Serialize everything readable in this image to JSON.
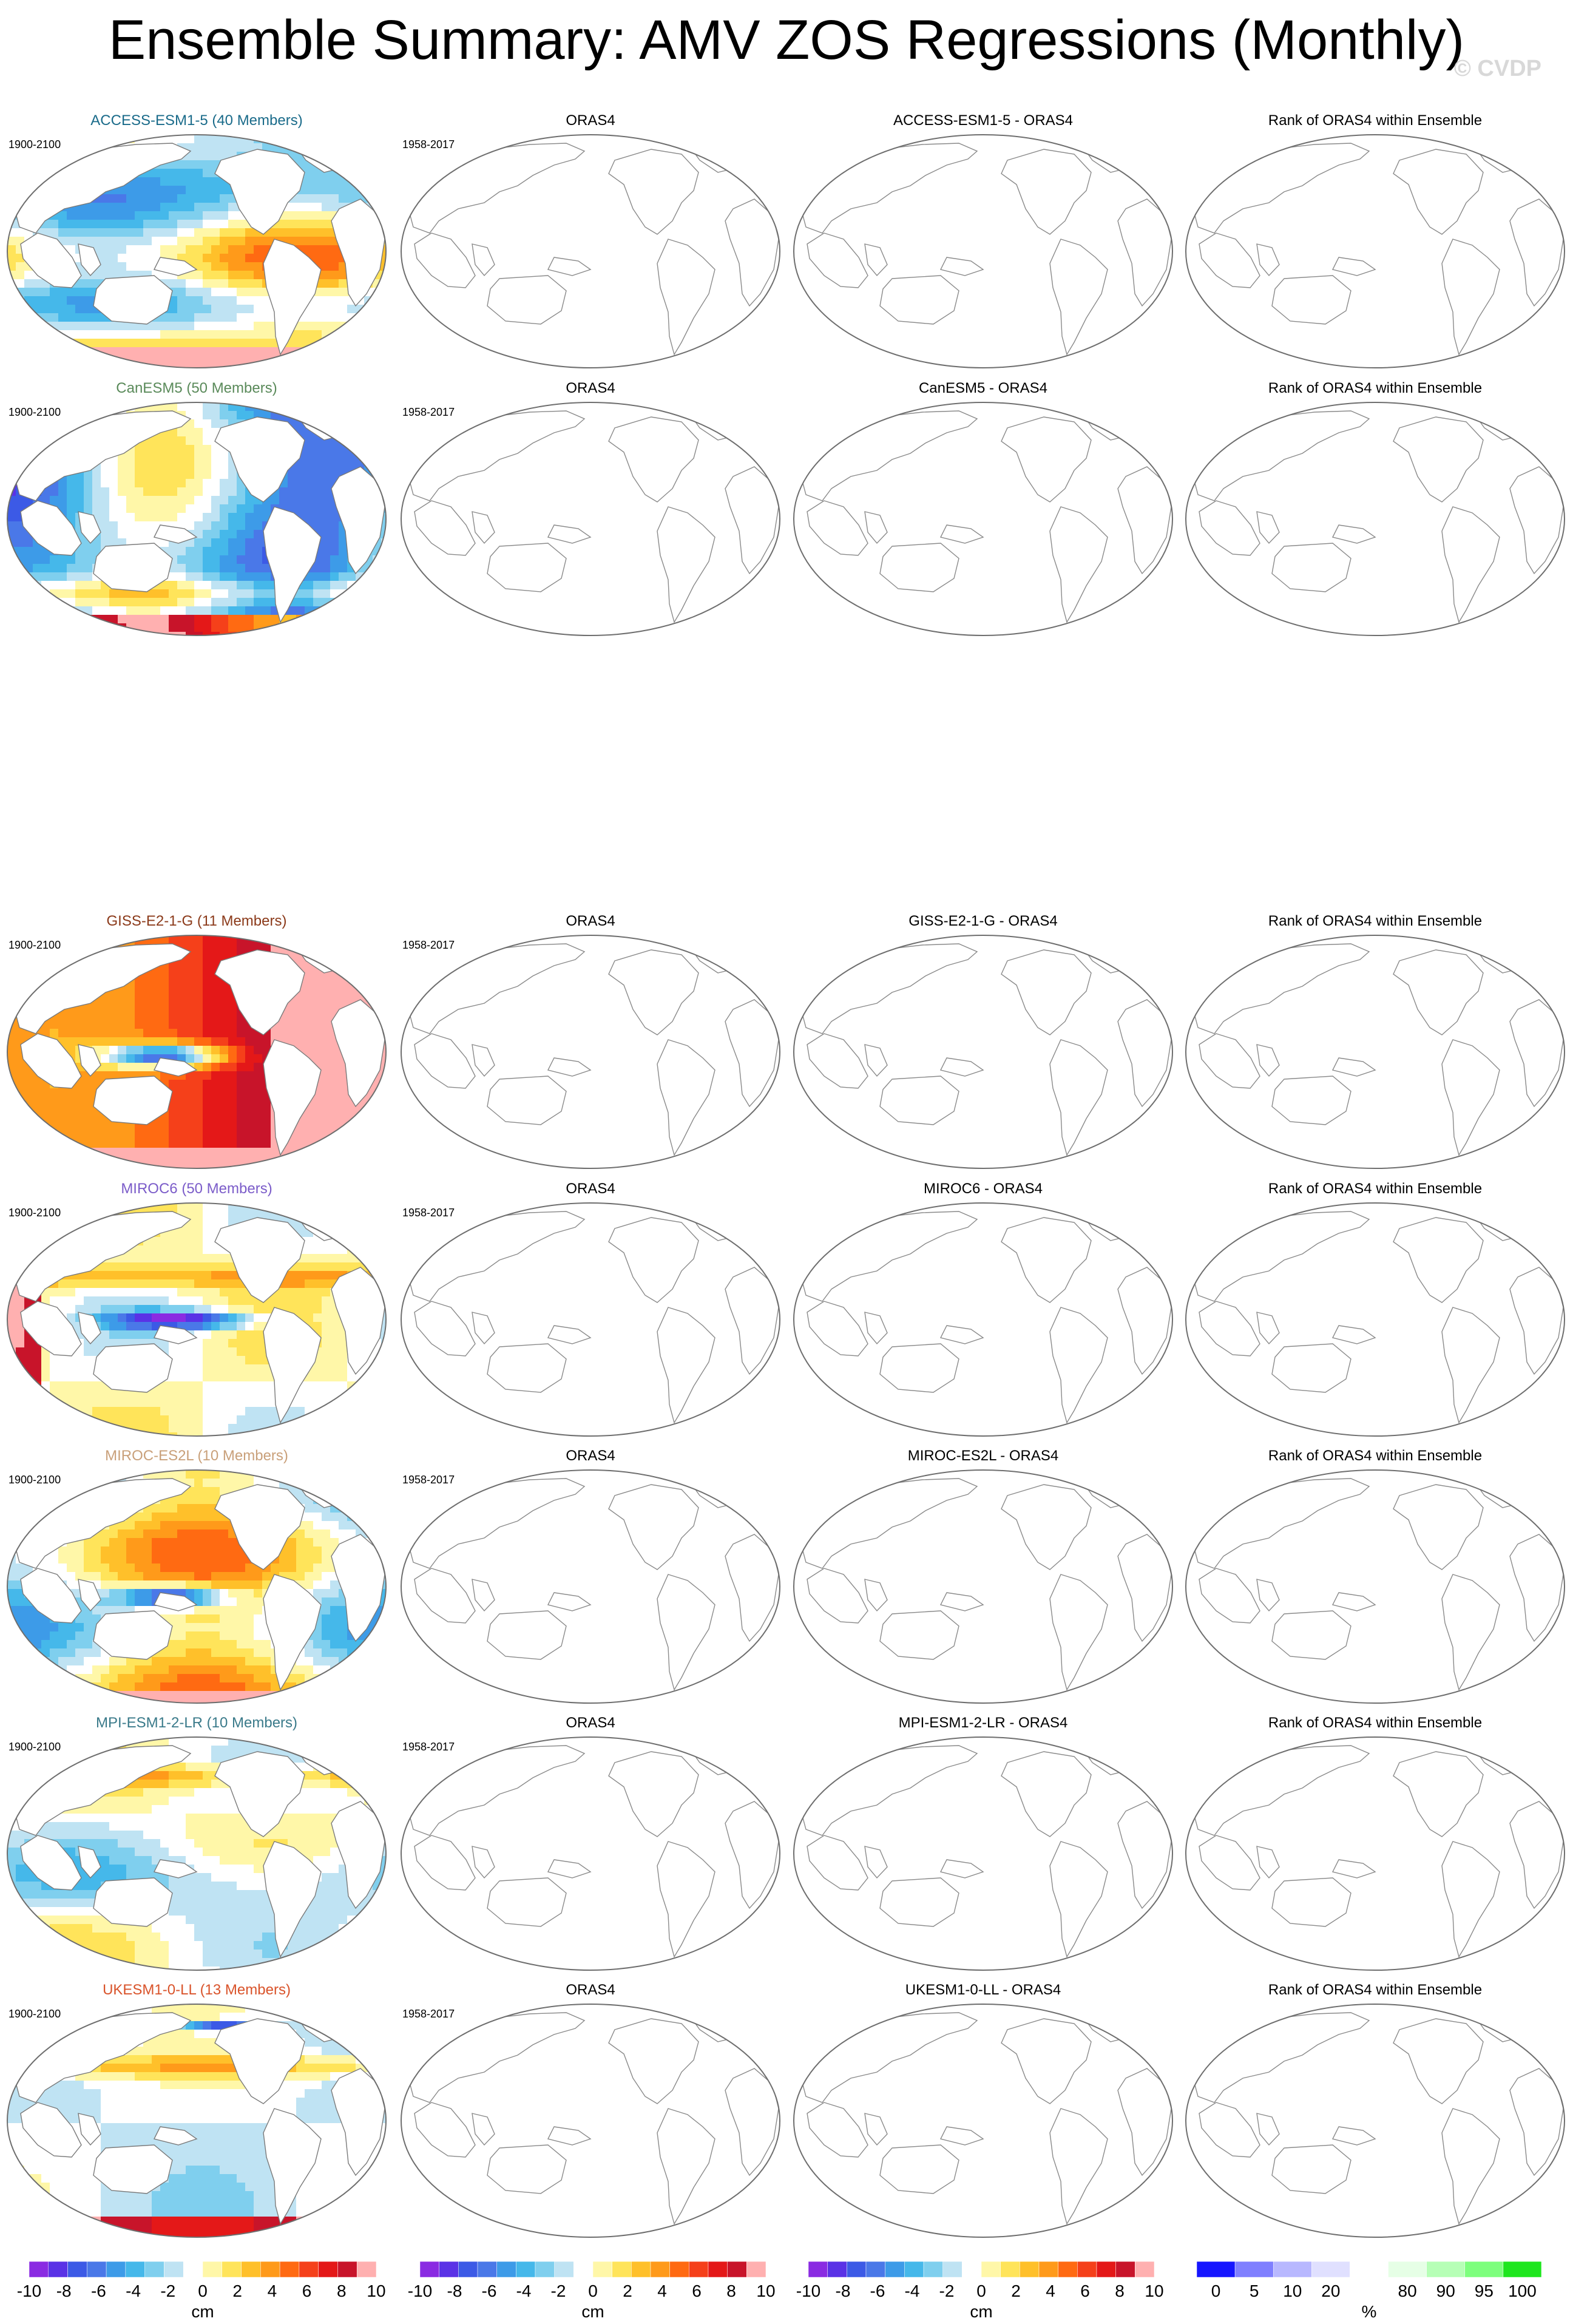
{
  "header": {
    "title": "Ensemble Summary: AMV ZOS Regressions (Monthly)",
    "watermark": "© CVDP"
  },
  "column_titles": [
    "ORAS4",
    "Rank of ORAS4 within Ensemble"
  ],
  "rows": [
    {
      "model": "ACCESS-ESM1-5",
      "model_title": "ACCESS-ESM1-5 (40 Members)",
      "model_period": "1900-2100",
      "obs_period": "1958-2017",
      "diff_title": "ACCESS-ESM1-5 - ORAS4",
      "title_color": "#1a6b8a",
      "pattern": "access"
    },
    {
      "model": "CanESM5",
      "model_title": "CanESM5 (50 Members)",
      "model_period": "1900-2100",
      "obs_period": "1958-2017",
      "diff_title": "CanESM5 - ORAS4",
      "title_color": "#5a8a5a",
      "pattern": "canesm"
    },
    {
      "model": "GISS-E2-1-G",
      "model_title": "GISS-E2-1-G (11 Members)",
      "model_period": "1900-2100",
      "obs_period": "1958-2017",
      "diff_title": "GISS-E2-1-G - ORAS4",
      "title_color": "#8b3a1a",
      "pattern": "giss"
    },
    {
      "model": "MIROC6",
      "model_title": "MIROC6 (50 Members)",
      "model_period": "1900-2100",
      "obs_period": "1958-2017",
      "diff_title": "MIROC6 - ORAS4",
      "title_color": "#7b5cc9",
      "pattern": "miroc6"
    },
    {
      "model": "MIROC-ES2L",
      "model_title": "MIROC-ES2L (10 Members)",
      "model_period": "1900-2100",
      "obs_period": "1958-2017",
      "diff_title": "MIROC-ES2L - ORAS4",
      "title_color": "#c9a07a",
      "pattern": "mirocs"
    },
    {
      "model": "MPI-ESM1-2-LR",
      "model_title": "MPI-ESM1-2-LR (10 Members)",
      "model_period": "1900-2100",
      "obs_period": "1958-2017",
      "diff_title": "MPI-ESM1-2-LR - ORAS4",
      "title_color": "#3a7a8a",
      "pattern": "mpi"
    },
    {
      "model": "UKESM1-0-LL",
      "model_title": "UKESM1-0-LL (13 Members)",
      "model_period": "1900-2100",
      "obs_period": "1958-2017",
      "diff_title": "UKESM1-0-LL - ORAS4",
      "title_color": "#d9532a",
      "pattern": "ukesm"
    }
  ],
  "colorbars": {
    "regression": {
      "unit": "cm",
      "labels": [
        "-10",
        "-8",
        "-6",
        "-4",
        "-2",
        "0",
        "2",
        "4",
        "6",
        "8",
        "10"
      ],
      "colors": [
        "#8a2be2",
        "#5a32e6",
        "#3c5ae6",
        "#4a78e8",
        "#3d9be8",
        "#45b8ea",
        "#7fcfee",
        "#bfe3f3",
        "#ffffff",
        "#fff7a8",
        "#ffe45a",
        "#ffc02a",
        "#ff9a1a",
        "#ff6a12",
        "#f5401a",
        "#e41818",
        "#c8142a",
        "#ffb0b0"
      ]
    },
    "rank": {
      "unit": "%",
      "labels": [
        "0",
        "5",
        "10",
        "20",
        "80",
        "90",
        "95",
        "100"
      ],
      "colors": [
        "#1515ff",
        "#7f7fff",
        "#b8b8ff",
        "#e0e0ff",
        "#ffffff",
        "#e6ffe6",
        "#b6ffb6",
        "#7dff7d",
        "#1ee61e"
      ]
    }
  },
  "chart_data": {
    "type": "heatmap",
    "panels_per_row": 4,
    "empty_panels": "observational, difference and rank panels show coastlines only (no data plotted)",
    "units": "cm",
    "contour_levels": [
      -10,
      -9,
      -8,
      -7,
      -6,
      -5,
      -4,
      -3,
      -2,
      -1,
      0,
      1,
      2,
      3,
      4,
      5,
      6,
      7,
      8,
      9,
      10
    ],
    "rank_levels": [
      0,
      5,
      10,
      20,
      80,
      90,
      95,
      100
    ]
  }
}
